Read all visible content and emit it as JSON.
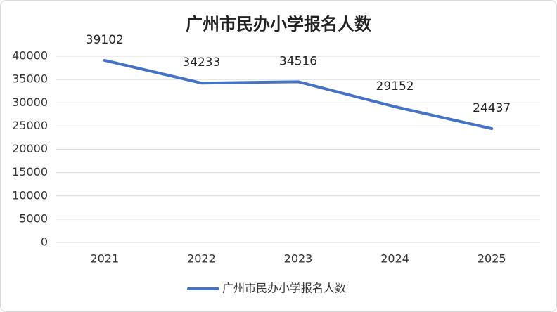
{
  "chart_data": {
    "type": "line",
    "title": "广州市民办小学报名人数",
    "categories": [
      "2021",
      "2022",
      "2023",
      "2024",
      "2025"
    ],
    "series": [
      {
        "name": "广州市民办小学报名人数",
        "color": "#4472c4",
        "values": [
          39102,
          34233,
          34516,
          29152,
          24437
        ]
      }
    ],
    "ylim": [
      0,
      40000
    ],
    "yticks": [
      0,
      5000,
      10000,
      15000,
      20000,
      25000,
      30000,
      35000,
      40000
    ],
    "grid": true,
    "data_labels": true,
    "legend": "bottom"
  }
}
